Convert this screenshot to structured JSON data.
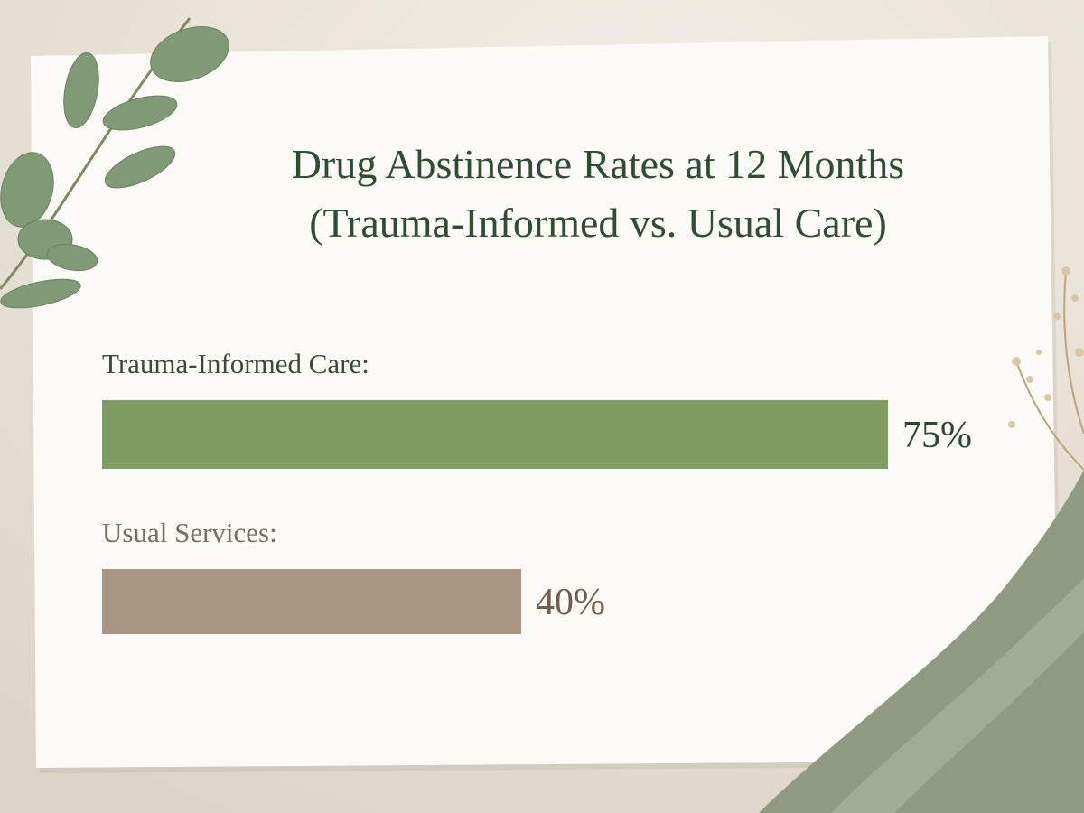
{
  "chart_data": {
    "type": "hbar",
    "title": "Drug Abstinence Rates at 12 Months",
    "subtitle": "(Trauma-Informed vs. Usual Care)",
    "categories": [
      "Trauma-Informed Care:",
      "Usual Services:"
    ],
    "values": [
      75,
      40
    ],
    "value_labels": [
      "75%",
      "40%"
    ],
    "colors": [
      "#7d9d62",
      "#a99582"
    ]
  }
}
